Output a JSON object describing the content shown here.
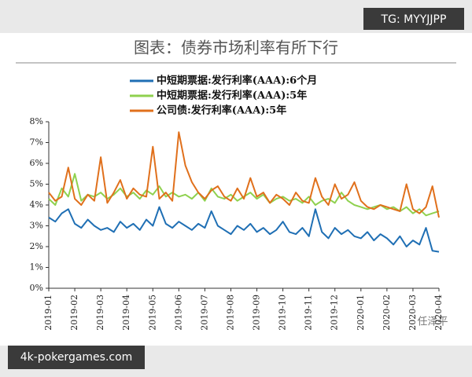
{
  "chart_data": {
    "type": "line",
    "title": "图表：债券市场利率有所下行",
    "categories": [
      "2019-01",
      null,
      null,
      null,
      "2019-02",
      null,
      null,
      null,
      "2019-03",
      null,
      null,
      null,
      "2019-04",
      null,
      null,
      null,
      "2019-05",
      null,
      null,
      null,
      "2019-06",
      null,
      null,
      null,
      "2019-07",
      null,
      null,
      null,
      "2019-08",
      null,
      null,
      null,
      "2019-09",
      null,
      null,
      null,
      "2019-10",
      null,
      null,
      null,
      "2019-11",
      null,
      null,
      null,
      "2019-12",
      null,
      null,
      null,
      "2020-01",
      null,
      null,
      null,
      "2020-02",
      null,
      null,
      null,
      "2020-03",
      null,
      null,
      null,
      "2020-04"
    ],
    "series": [
      {
        "name": "中短期票据:发行利率(AAA):6个月",
        "color": "#1f6fb4",
        "values": [
          3.4,
          3.2,
          3.6,
          3.8,
          3.1,
          2.9,
          3.3,
          3.0,
          2.8,
          2.9,
          2.7,
          3.2,
          2.9,
          3.1,
          2.8,
          3.3,
          3.0,
          3.9,
          3.1,
          2.9,
          3.2,
          3.0,
          2.8,
          3.1,
          2.9,
          3.7,
          3.0,
          2.8,
          2.6,
          3.0,
          2.8,
          3.1,
          2.7,
          2.9,
          2.6,
          2.8,
          3.2,
          2.7,
          2.6,
          2.9,
          2.5,
          3.8,
          2.7,
          2.4,
          2.9,
          2.6,
          2.8,
          2.5,
          2.4,
          2.7,
          2.3,
          2.6,
          2.4,
          2.1,
          2.5,
          2.0,
          2.3,
          2.1,
          2.9,
          1.8,
          1.75
        ]
      },
      {
        "name": "中短期票据:发行利率(AAA):5年",
        "color": "#8fd14f",
        "values": [
          4.3,
          4.0,
          4.8,
          4.4,
          5.5,
          4.2,
          4.5,
          4.4,
          4.6,
          4.3,
          4.5,
          4.8,
          4.4,
          4.6,
          4.3,
          4.7,
          4.5,
          4.9,
          4.4,
          4.6,
          4.4,
          4.5,
          4.3,
          4.6,
          4.2,
          4.8,
          4.4,
          4.3,
          4.5,
          4.2,
          4.4,
          4.6,
          4.3,
          4.5,
          4.1,
          4.3,
          4.4,
          4.2,
          4.3,
          4.1,
          4.4,
          4.0,
          4.2,
          4.3,
          4.1,
          4.6,
          4.2,
          4.0,
          3.9,
          3.8,
          3.9,
          4.0,
          3.8,
          3.9,
          3.7,
          3.9,
          3.6,
          3.8,
          3.5,
          3.6,
          3.7
        ]
      },
      {
        "name": "公司债:发行利率(AAA):5年",
        "color": "#e0701c",
        "values": [
          4.6,
          4.2,
          4.4,
          5.8,
          4.3,
          4.0,
          4.5,
          4.2,
          6.3,
          4.1,
          4.6,
          5.2,
          4.3,
          4.8,
          4.5,
          4.4,
          6.8,
          4.3,
          4.6,
          4.2,
          7.5,
          5.9,
          5.1,
          4.6,
          4.3,
          4.7,
          4.9,
          4.4,
          4.2,
          4.8,
          4.3,
          5.3,
          4.4,
          4.6,
          4.1,
          4.5,
          4.3,
          4.0,
          4.6,
          4.2,
          4.1,
          5.3,
          4.4,
          4.0,
          5.0,
          4.3,
          4.5,
          5.1,
          4.2,
          3.9,
          3.8,
          4.0,
          3.9,
          3.8,
          3.7,
          5.0,
          3.8,
          3.6,
          3.9,
          4.9,
          3.4
        ]
      }
    ],
    "ylim": [
      0,
      8
    ],
    "yticks": [
      {
        "value": 0,
        "label": "0%"
      },
      {
        "value": 1,
        "label": "1%"
      },
      {
        "value": 2,
        "label": "2%"
      },
      {
        "value": 3,
        "label": "3%"
      },
      {
        "value": 4,
        "label": "4%"
      },
      {
        "value": 5,
        "label": "5%"
      },
      {
        "value": 6,
        "label": "6%"
      },
      {
        "value": 7,
        "label": "7%"
      },
      {
        "value": 8,
        "label": "8%"
      }
    ],
    "grid": false
  },
  "watermarks": {
    "top": "TG: MYYJJPP",
    "bottom": "4k-pokergames.com",
    "author": "任泽平"
  }
}
